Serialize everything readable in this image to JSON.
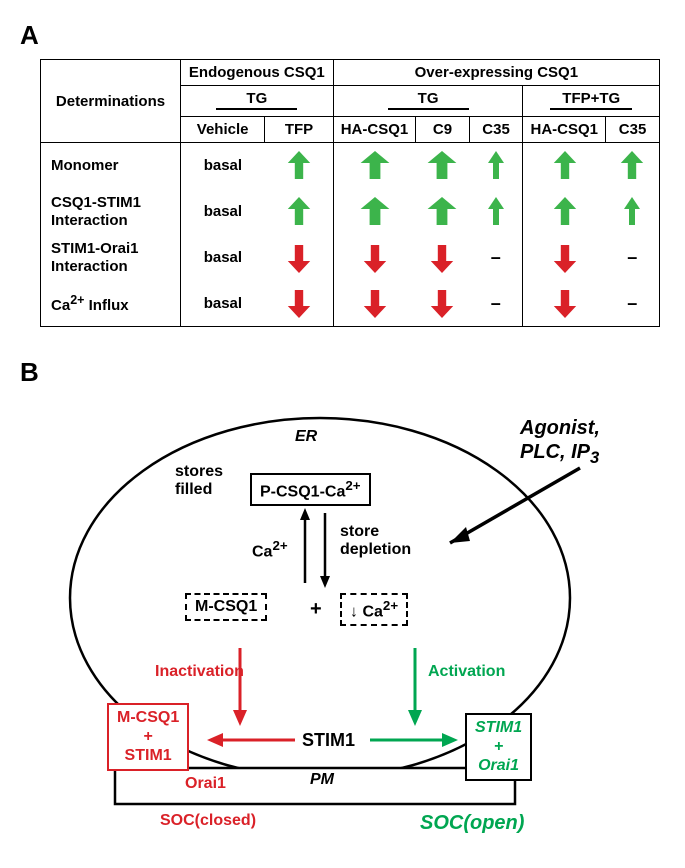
{
  "panelA": {
    "label": "A",
    "header": {
      "determinations": "Determinations",
      "endogenous": "Endogenous CSQ1",
      "overexpressing": "Over-expressing CSQ1",
      "tg": "TG",
      "tfptg": "TFP+TG",
      "vehicle": "Vehicle",
      "tfp": "TFP",
      "hacsq1": "HA-CSQ1",
      "c9": "C9",
      "c35": "C35"
    },
    "rows": [
      {
        "label": "Monomer",
        "cells": [
          "basal",
          "gu-m",
          "gu-l",
          "gu-l",
          "gu-s",
          "gu-m",
          "gu-m"
        ]
      },
      {
        "label": "CSQ1-STIM1 Interaction",
        "cells": [
          "basal",
          "gu-m",
          "gu-l",
          "gu-l",
          "gu-s",
          "gu-m",
          "gu-s"
        ]
      },
      {
        "label": "STIM1-Orai1 Interaction",
        "cells": [
          "basal",
          "rd-m",
          "rd-m",
          "rd-m",
          "dash",
          "rd-m",
          "dash"
        ]
      },
      {
        "label": "Ca²⁺ Influx",
        "cells": [
          "basal",
          "rd-m",
          "rd-m",
          "rd-m",
          "dash",
          "rd-m",
          "dash"
        ]
      }
    ],
    "colors": {
      "green": "#3cb44b",
      "red": "#da2128"
    },
    "arrowSizes": {
      "s": 10,
      "m": 14,
      "l": 18
    }
  },
  "panelB": {
    "label": "B",
    "er": "ER",
    "pm": "PM",
    "agonist": "Agonist, PLC, IP₃",
    "storesFilled": "stores filled",
    "pcsq": "P-CSQ1-Ca²⁺",
    "ca2": "Ca²⁺",
    "storeDepletion": "store depletion",
    "mcsq": "M-CSQ1",
    "plus": "+",
    "downCa": "↓ Ca²⁺",
    "inactivation": "Inactivation",
    "activation": "Activation",
    "mcsqStim": "M-CSQ1 + STIM1",
    "stim1": "STIM1",
    "stimOrai": "STIM1 + Orai1",
    "orai1": "Orai1",
    "socClosed": "SOC(closed)",
    "socOpen": "SOC(open)",
    "colors": {
      "red": "#da2128",
      "green": "#00a651",
      "black": "#000000"
    }
  }
}
